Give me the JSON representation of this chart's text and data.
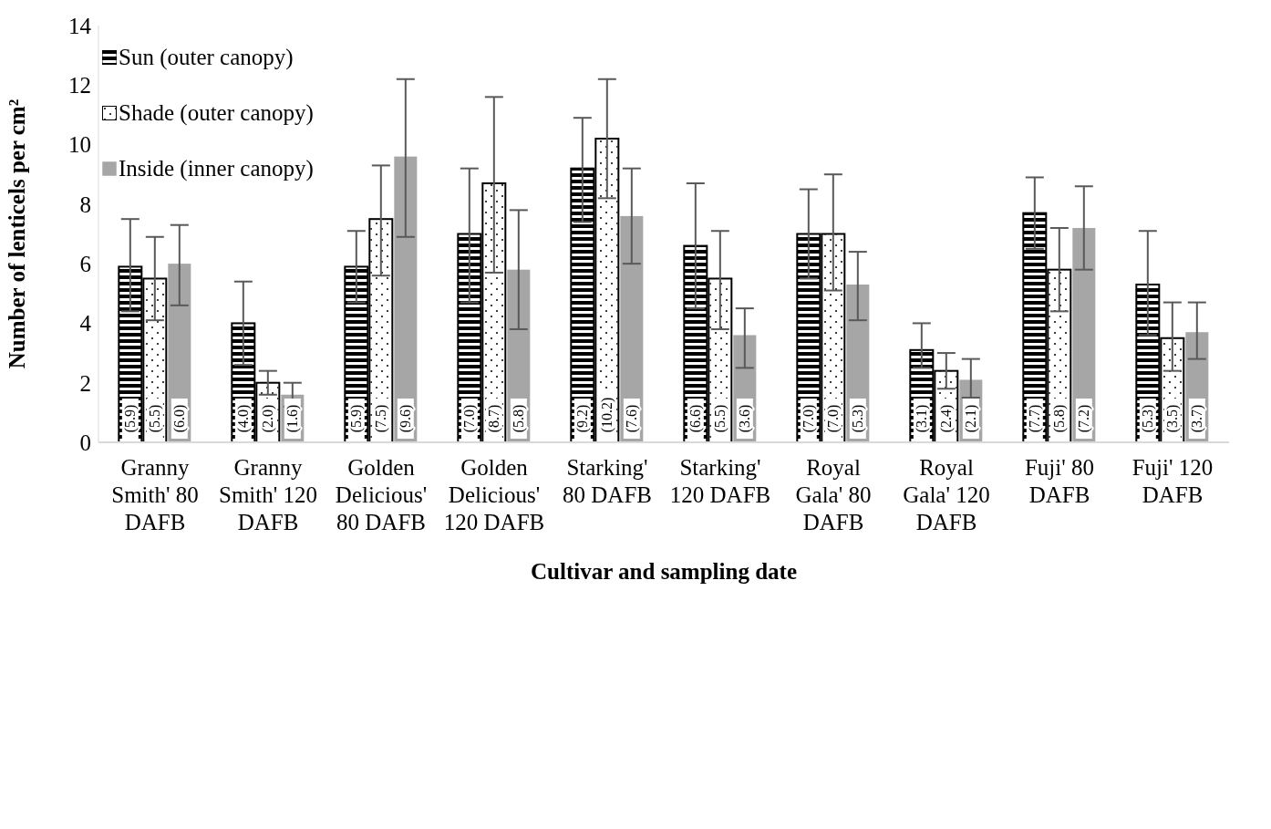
{
  "chart_data": {
    "type": "bar",
    "xlabel": "Cultivar and sampling date",
    "ylabel": "Number of lenticels per cm²",
    "categories": [
      "Granny Smith' 80 DAFB",
      "Granny Smith' 120 DAFB",
      "Golden Delicious' 80 DAFB",
      "Golden Delicious' 120 DAFB",
      "Starking' 80 DAFB",
      "Starking' 120 DAFB",
      "Royal Gala' 80 DAFB",
      "Royal Gala' 120 DAFB",
      "Fuji' 80 DAFB",
      "Fuji' 120 DAFB"
    ],
    "series": [
      {
        "name": "Sun (outer canopy)",
        "color": "#000000",
        "values": [
          5.9,
          4.0,
          5.9,
          7.0,
          9.2,
          6.6,
          7.0,
          3.1,
          7.7,
          5.3
        ],
        "errors": [
          [
            4.4,
            7.5
          ],
          [
            2.6,
            5.4
          ],
          [
            4.7,
            7.1
          ],
          [
            4.7,
            9.2
          ],
          [
            7.4,
            10.9
          ],
          [
            4.5,
            8.7
          ],
          [
            5.5,
            8.5
          ],
          [
            2.5,
            4.0
          ],
          [
            6.5,
            8.9
          ],
          [
            3.6,
            7.1
          ]
        ],
        "value_labels": [
          "(5.9)",
          "(4.0)",
          "(5.9)",
          "(7.0)",
          "(9.2)",
          "(6.6)",
          "(7.0)",
          "(3.1)",
          "(7.7)",
          "(5.3)"
        ]
      },
      {
        "name": "Shade (outer canopy)",
        "color": "#ffffff",
        "values": [
          5.5,
          2.0,
          7.5,
          8.7,
          10.2,
          5.5,
          7.0,
          2.4,
          5.8,
          3.5
        ],
        "errors": [
          [
            4.1,
            6.9
          ],
          [
            1.6,
            2.4
          ],
          [
            5.6,
            9.3
          ],
          [
            5.7,
            11.6
          ],
          [
            8.2,
            12.2
          ],
          [
            3.8,
            7.1
          ],
          [
            5.1,
            9.0
          ],
          [
            1.8,
            3.0
          ],
          [
            4.4,
            7.2
          ],
          [
            2.4,
            4.7
          ]
        ],
        "value_labels": [
          "(5.5)",
          "(2.0)",
          "(7.5)",
          "(8.7)",
          "(10.2)",
          "(5.5)",
          "(7.0)",
          "(2.4)",
          "(5.8)",
          "(3.5)"
        ]
      },
      {
        "name": "Inside (inner canopy)",
        "color": "#a6a6a6",
        "values": [
          6.0,
          1.6,
          9.6,
          5.8,
          7.6,
          3.6,
          5.3,
          2.1,
          7.2,
          3.7
        ],
        "errors": [
          [
            4.6,
            7.3
          ],
          [
            1.2,
            2.0
          ],
          [
            6.9,
            12.2
          ],
          [
            3.8,
            7.8
          ],
          [
            6.0,
            9.2
          ],
          [
            2.5,
            4.5
          ],
          [
            4.1,
            6.4
          ],
          [
            1.5,
            2.8
          ],
          [
            5.8,
            8.6
          ],
          [
            2.8,
            4.7
          ]
        ],
        "value_labels": [
          "(6.0)",
          "(1.6)",
          "(9.6)",
          "(5.8)",
          "(7.6)",
          "(3.6)",
          "(5.3)",
          "(2.1)",
          "(7.2)",
          "(3.7)"
        ]
      }
    ],
    "ylim": [
      0,
      14
    ],
    "yticks": [
      0,
      2,
      4,
      6,
      8,
      10,
      12,
      14
    ],
    "legend": "top left"
  }
}
